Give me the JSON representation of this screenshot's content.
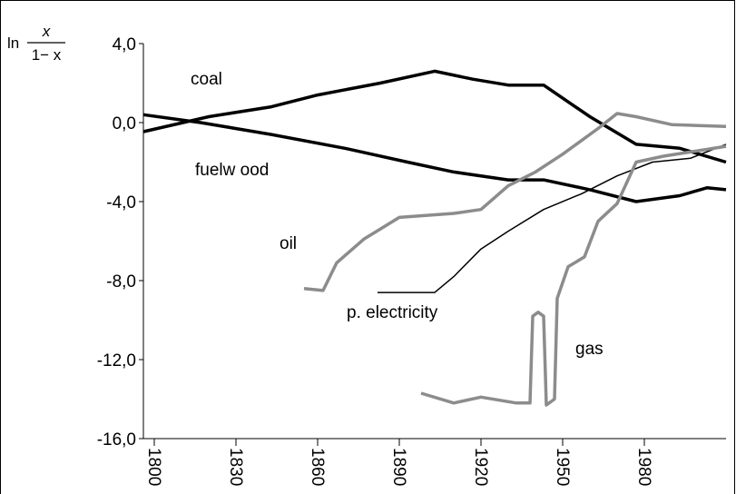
{
  "chart_data": {
    "type": "line",
    "y_label": {
      "prefix": "ln",
      "numerator": "x",
      "denominator": "1− x"
    },
    "xlim": [
      1796,
      2010
    ],
    "xticks": [
      1800,
      1830,
      1860,
      1890,
      1920,
      1950,
      1980
    ],
    "ylim": [
      -16,
      4
    ],
    "yticks": [
      {
        "value": -16,
        "label": "-16,0"
      },
      {
        "value": -12,
        "label": "-12,0"
      },
      {
        "value": -8,
        "label": "-8,0"
      },
      {
        "value": -4,
        "label": "-4,0"
      },
      {
        "value": 0,
        "label": "0,0"
      },
      {
        "value": 4,
        "label": "4,0"
      }
    ],
    "grid": false,
    "series": [
      {
        "name": "coal",
        "color": "#000000",
        "x": [
          1796,
          1820,
          1843,
          1860,
          1883,
          1903,
          1917,
          1930,
          1943,
          1960,
          1977,
          1993,
          2010
        ],
        "values": [
          -0.46,
          0.3,
          0.8,
          1.4,
          2.0,
          2.6,
          2.2,
          1.9,
          1.9,
          0.3,
          -1.1,
          -1.3,
          -2.0
        ]
      },
      {
        "name": "fuelw ood",
        "color": "#000000",
        "x": [
          1796,
          1817,
          1843,
          1870,
          1893,
          1910,
          1930,
          1943,
          1960,
          1977,
          1993,
          2003,
          2010
        ],
        "values": [
          0.4,
          0.0,
          -0.6,
          -1.3,
          -2.0,
          -2.5,
          -2.9,
          -2.9,
          -3.4,
          -4.0,
          -3.7,
          -3.3,
          -3.4
        ]
      },
      {
        "name": "oil",
        "color": "#8c8c8c",
        "x": [
          1855,
          1862,
          1867,
          1877,
          1890,
          1910,
          1920,
          1930,
          1940,
          1950,
          1963,
          1970,
          1977,
          1990,
          2010
        ],
        "values": [
          -8.4,
          -8.5,
          -7.1,
          -5.9,
          -4.8,
          -4.6,
          -4.4,
          -3.2,
          -2.5,
          -1.6,
          -0.3,
          0.46,
          0.3,
          -0.1,
          -0.2
        ]
      },
      {
        "name": "p. electricity",
        "color": "#000000",
        "x": [
          1882,
          1903,
          1910,
          1920,
          1930,
          1943,
          1957,
          1970,
          1983,
          1997,
          2010
        ],
        "values": [
          -8.6,
          -8.6,
          -7.8,
          -6.4,
          -5.5,
          -4.4,
          -3.6,
          -2.7,
          -2.0,
          -1.8,
          -1.1
        ]
      },
      {
        "name": "gas",
        "color": "#8c8c8c",
        "x": [
          1898,
          1910,
          1920,
          1933,
          1938,
          1939,
          1941,
          1943,
          1944,
          1947,
          1948,
          1952,
          1958,
          1963,
          1970,
          1977,
          1987,
          2010
        ],
        "values": [
          -13.7,
          -14.2,
          -13.9,
          -14.2,
          -14.2,
          -9.8,
          -9.6,
          -9.8,
          -14.3,
          -14.0,
          -8.9,
          -7.3,
          -6.8,
          -5.0,
          -4.1,
          -2.0,
          -1.7,
          -1.2
        ]
      }
    ]
  }
}
